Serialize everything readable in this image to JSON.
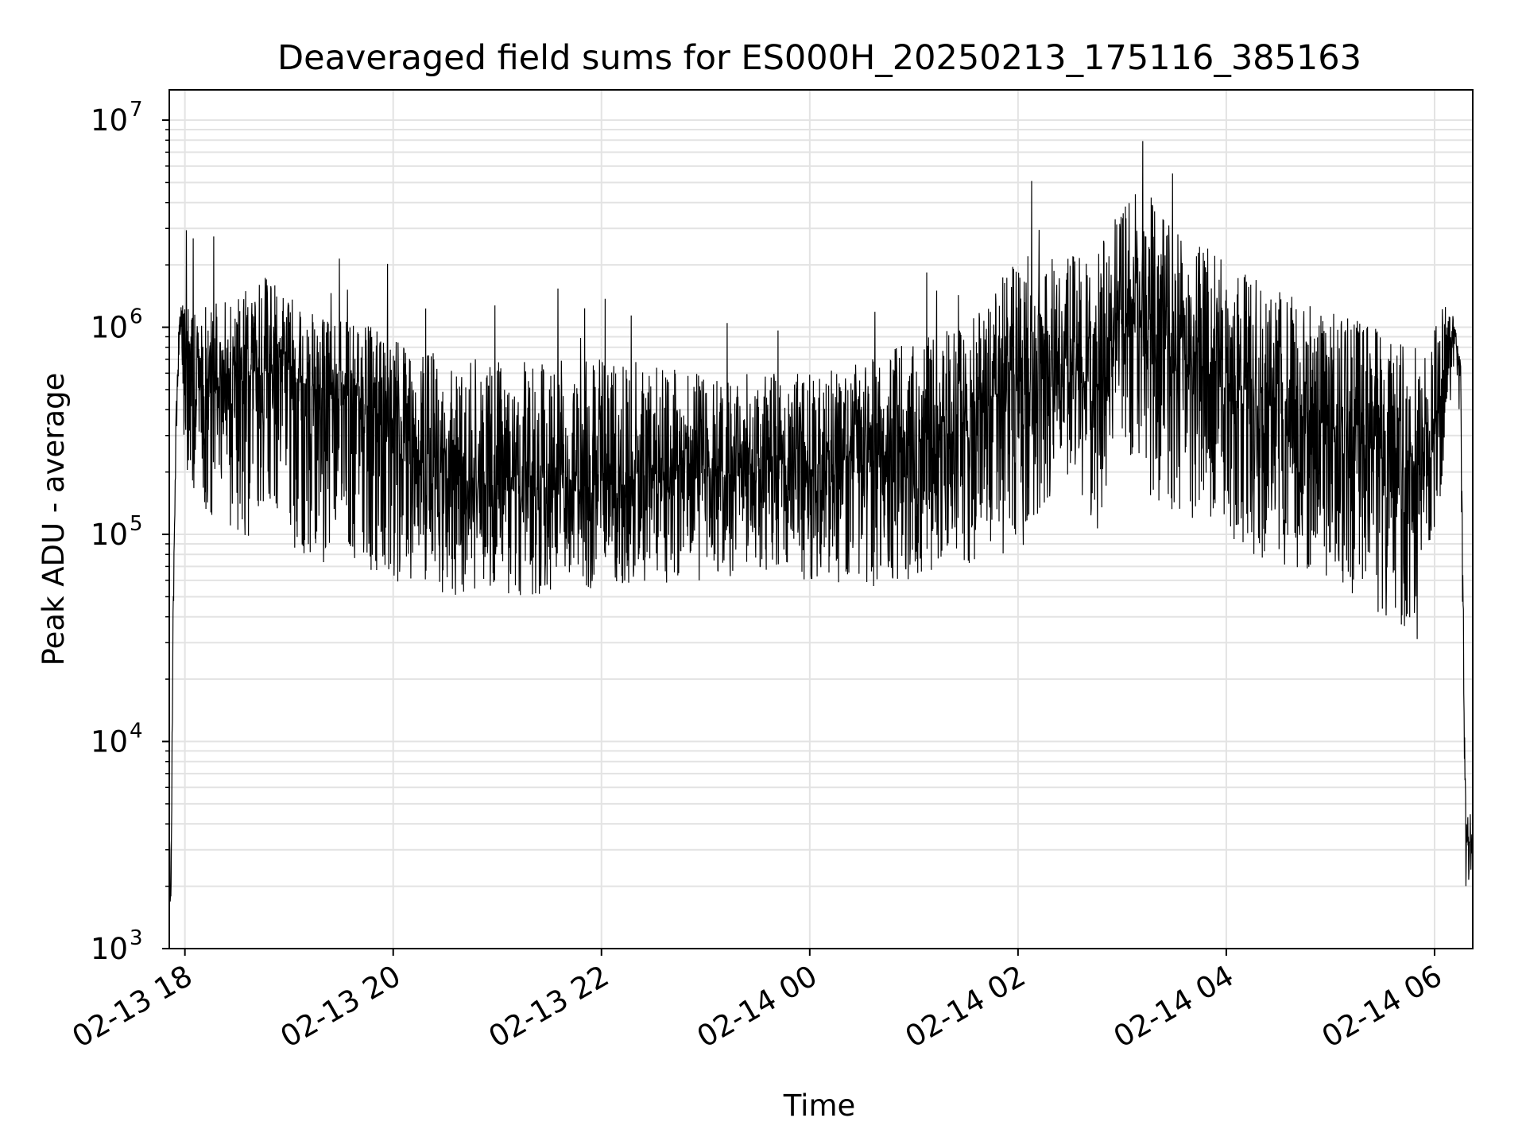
{
  "chart_data": {
    "type": "line",
    "title": "Deaveraged field sums for ES000H_20250213_175116_385163",
    "xlabel": "Time",
    "ylabel": "Peak ADU - average",
    "yscale": "log",
    "ylim": [
      1000,
      14000000
    ],
    "xlim": [
      "2025-02-13 17:51",
      "2025-02-14 06:22"
    ],
    "grid": true,
    "line_color": "#000000",
    "grid_color": "#e3e3e3",
    "x_ticks": [
      "02-13 18",
      "02-13 20",
      "02-13 22",
      "02-14 00",
      "02-14 02",
      "02-14 04",
      "02-14 06"
    ],
    "x_tick_times": [
      "2025-02-13 18:00",
      "2025-02-13 20:00",
      "2025-02-13 22:00",
      "2025-02-14 00:00",
      "2025-02-14 02:00",
      "2025-02-14 04:00",
      "2025-02-14 06:00"
    ],
    "y_ticks": [
      {
        "base": "10",
        "exp": "3",
        "value": 1000
      },
      {
        "base": "10",
        "exp": "4",
        "value": 10000
      },
      {
        "base": "10",
        "exp": "5",
        "value": 100000
      },
      {
        "base": "10",
        "exp": "6",
        "value": 1000000
      },
      {
        "base": "10",
        "exp": "7",
        "value": 10000000
      }
    ],
    "series": [
      {
        "x": [
          "2025-02-13 17:51",
          "2025-02-13 17:52",
          "2025-02-13 17:53",
          "2025-02-13 17:55",
          "2025-02-13 17:57",
          "2025-02-13 17:58",
          "2025-02-13 18:00",
          "2025-02-13 18:05",
          "2025-02-13 18:15",
          "2025-02-13 18:30",
          "2025-02-13 18:45",
          "2025-02-13 19:00",
          "2025-02-13 19:15",
          "2025-02-13 19:30",
          "2025-02-13 19:45",
          "2025-02-13 20:00",
          "2025-02-13 20:15",
          "2025-02-13 20:30",
          "2025-02-13 20:45",
          "2025-02-13 21:00",
          "2025-02-13 21:30",
          "2025-02-13 22:00",
          "2025-02-13 22:30",
          "2025-02-13 23:00",
          "2025-02-13 23:30",
          "2025-02-14 00:00",
          "2025-02-14 00:30",
          "2025-02-14 01:00",
          "2025-02-14 01:30",
          "2025-02-14 02:00",
          "2025-02-14 02:30",
          "2025-02-14 02:45",
          "2025-02-14 03:00",
          "2025-02-14 03:15",
          "2025-02-14 03:30",
          "2025-02-14 04:00",
          "2025-02-14 04:30",
          "2025-02-14 05:00",
          "2025-02-14 05:30",
          "2025-02-14 05:50",
          "2025-02-14 06:00",
          "2025-02-14 06:05",
          "2025-02-14 06:12",
          "2025-02-14 06:15",
          "2025-02-14 06:18",
          "2025-02-14 06:22"
        ],
        "y": [
          4000,
          1600,
          30000,
          400000,
          900000,
          1000000,
          700000,
          400000,
          500000,
          550000,
          600000,
          600000,
          500000,
          480000,
          420000,
          320000,
          220000,
          180000,
          170000,
          170000,
          170000,
          170000,
          180000,
          190000,
          200000,
          210000,
          230000,
          270000,
          330000,
          600000,
          700000,
          500000,
          1100000,
          1100000,
          900000,
          600000,
          420000,
          330000,
          250000,
          200000,
          320000,
          600000,
          1000000,
          600000,
          3000,
          3500
        ],
        "upper": [
          5000,
          2000,
          35000,
          700000,
          1200000,
          1300000,
          1700000,
          1200000,
          1300000,
          1500000,
          1800000,
          1500000,
          1200000,
          1100000,
          1100000,
          900000,
          800000,
          750000,
          700000,
          700000,
          700000,
          700000,
          650000,
          600000,
          600000,
          600000,
          700000,
          900000,
          1000000,
          2200000,
          2500000,
          2200000,
          4000000,
          5000000,
          3000000,
          2200000,
          1500000,
          1200000,
          1000000,
          800000,
          1000000,
          1300000,
          1100000,
          700000,
          5000,
          4500
        ],
        "lower": [
          1500,
          1500,
          20000,
          300000,
          600000,
          700000,
          200000,
          120000,
          120000,
          100000,
          80000,
          80000,
          75000,
          70000,
          65000,
          60000,
          55000,
          50000,
          50000,
          50000,
          52000,
          55000,
          58000,
          60000,
          62000,
          60000,
          55000,
          60000,
          70000,
          80000,
          200000,
          100000,
          300000,
          150000,
          120000,
          90000,
          70000,
          60000,
          40000,
          30000,
          90000,
          200000,
          700000,
          300000,
          1800,
          2500
        ]
      }
    ]
  }
}
